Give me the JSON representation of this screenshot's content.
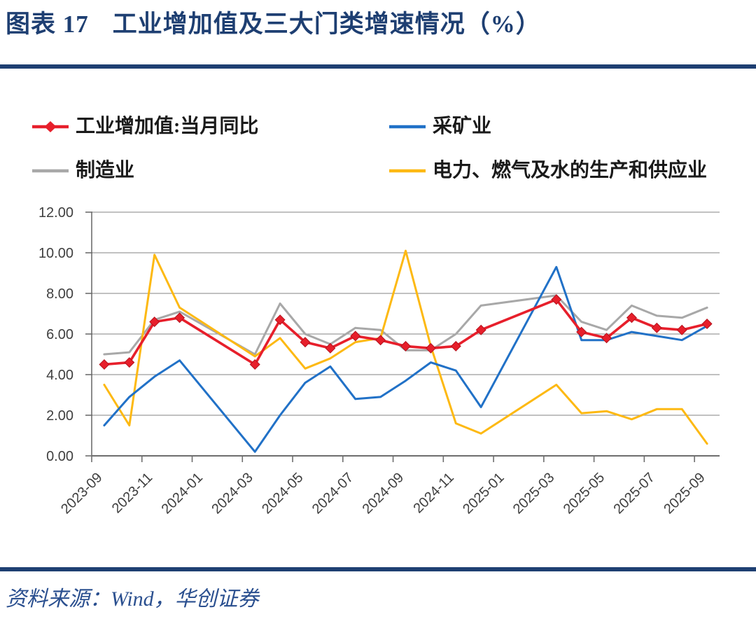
{
  "header": {
    "label": "图表 17",
    "title": "工业增加值及三大门类增速情况（%）"
  },
  "footer": {
    "source": "资料来源：Wind，华创证券"
  },
  "chart_data": {
    "type": "line",
    "title": "工业增加值及三大门类增速情况（%）",
    "xlabel": "",
    "ylabel": "",
    "ylim": [
      0,
      12
    ],
    "ytick_step": 2,
    "ytick_labels": [
      "0.00",
      "2.00",
      "4.00",
      "6.00",
      "8.00",
      "10.00",
      "12.00"
    ],
    "grid": true,
    "legend_position": "top",
    "x": [
      "2023-09",
      "2023-10",
      "2023-11",
      "2023-12",
      "2024-01",
      "2024-02",
      "2024-03",
      "2024-04",
      "2024-05",
      "2024-06",
      "2024-07",
      "2024-08",
      "2024-09",
      "2024-10",
      "2024-11",
      "2024-12",
      "2025-01",
      "2025-02",
      "2025-03",
      "2025-04",
      "2025-05",
      "2025-06",
      "2025-07",
      "2025-08",
      "2025-09"
    ],
    "x_tick_labels": [
      "2023-09",
      "2023-11",
      "2024-01",
      "2024-03",
      "2024-05",
      "2024-07",
      "2024-09",
      "2024-11",
      "2025-01",
      "2025-03",
      "2025-05",
      "2025-07",
      "2025-09"
    ],
    "series": [
      {
        "key": "industrial_va",
        "name": "工业增加值:当月同比",
        "color": "#e71f2b",
        "marker": "diamond",
        "values": [
          4.5,
          4.6,
          6.6,
          6.8,
          null,
          null,
          4.5,
          6.7,
          5.6,
          5.3,
          5.9,
          5.7,
          5.4,
          5.3,
          5.4,
          6.2,
          null,
          null,
          7.7,
          6.1,
          5.8,
          6.8,
          6.3,
          6.2,
          6.5
        ]
      },
      {
        "key": "mining",
        "name": "采矿业",
        "color": "#2171c7",
        "marker": null,
        "values": [
          1.5,
          2.9,
          3.9,
          4.7,
          null,
          null,
          0.2,
          2.0,
          3.6,
          4.4,
          2.8,
          2.9,
          3.7,
          4.6,
          4.2,
          2.4,
          null,
          null,
          9.3,
          5.7,
          5.7,
          6.1,
          5.9,
          5.7,
          6.4
        ]
      },
      {
        "key": "manufacturing",
        "name": "制造业",
        "color": "#a8a8a8",
        "marker": null,
        "values": [
          5.0,
          5.1,
          6.7,
          7.1,
          null,
          null,
          5.0,
          7.5,
          6.0,
          5.5,
          6.3,
          6.2,
          5.2,
          5.2,
          6.0,
          7.4,
          null,
          null,
          7.9,
          6.6,
          6.2,
          7.4,
          6.9,
          6.8,
          7.3
        ]
      },
      {
        "key": "utilities",
        "name": "电力、燃气及水的生产和供应业",
        "color": "#fdb913",
        "marker": null,
        "values": [
          3.5,
          1.5,
          9.9,
          7.3,
          null,
          null,
          4.9,
          5.8,
          4.3,
          4.8,
          5.6,
          5.8,
          10.1,
          5.4,
          1.6,
          1.1,
          null,
          null,
          3.5,
          2.1,
          2.2,
          1.8,
          2.3,
          2.3,
          0.6
        ]
      }
    ]
  }
}
